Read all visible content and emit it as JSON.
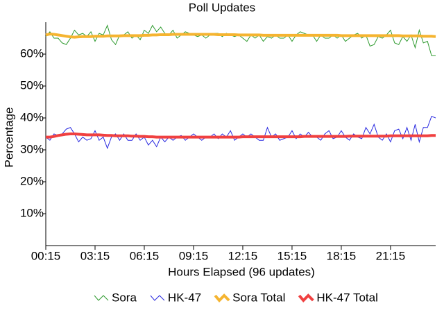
{
  "chart_data": {
    "type": "line",
    "title": "Poll Updates",
    "xlabel": "Hours Elapsed (96 updates)",
    "ylabel": "Percentage",
    "categories": [
      "00:15",
      null,
      null,
      null,
      null,
      null,
      null,
      null,
      null,
      null,
      null,
      null,
      "03:15",
      null,
      null,
      null,
      null,
      null,
      null,
      null,
      null,
      null,
      null,
      null,
      "06:15",
      null,
      null,
      null,
      null,
      null,
      null,
      null,
      null,
      null,
      null,
      null,
      "09:15",
      null,
      null,
      null,
      null,
      null,
      null,
      null,
      null,
      null,
      null,
      null,
      "12:15",
      null,
      null,
      null,
      null,
      null,
      null,
      null,
      null,
      null,
      null,
      null,
      "15:15",
      null,
      null,
      null,
      null,
      null,
      null,
      null,
      null,
      null,
      null,
      null,
      "18:15",
      null,
      null,
      null,
      null,
      null,
      null,
      null,
      null,
      null,
      null,
      null,
      "21:15",
      null,
      null,
      null,
      null,
      null,
      null,
      null,
      null,
      null,
      null,
      null
    ],
    "ylim": [
      0,
      70
    ],
    "yticks": [
      {
        "value": 10,
        "label": "10%"
      },
      {
        "value": 20,
        "label": "20%"
      },
      {
        "value": 30,
        "label": "30%"
      },
      {
        "value": 40,
        "label": "40%"
      },
      {
        "value": 50,
        "label": "50%"
      },
      {
        "value": 60,
        "label": "60%"
      }
    ],
    "legend": "bottom",
    "series": [
      {
        "name": "Sora",
        "color": "#2e9a2e",
        "width": 1,
        "values": [
          65.5,
          67,
          65,
          65,
          63.5,
          63,
          65,
          67.5,
          66,
          66.5,
          65.5,
          67,
          64,
          66.5,
          66,
          69,
          64.5,
          63,
          66,
          66,
          67,
          65,
          66,
          64.5,
          67.5,
          66.5,
          69,
          67,
          68.5,
          66.5,
          66,
          67.5,
          65,
          66,
          67,
          66.5,
          66,
          65.5,
          66,
          65,
          66,
          66.5,
          66.5,
          65.5,
          66.5,
          66,
          65.5,
          66,
          65,
          64,
          66,
          65,
          66,
          64,
          65.5,
          65,
          66,
          65,
          65,
          66,
          64,
          66,
          67,
          66.5,
          66,
          66,
          64,
          66,
          65,
          65,
          66,
          65,
          66,
          64,
          65,
          66,
          66.5,
          65,
          66,
          62.5,
          63,
          65.5,
          65,
          66,
          67.5,
          63.5,
          63,
          65.5,
          64,
          66,
          62,
          67.5,
          63.5,
          64,
          59.5,
          59.5
        ]
      },
      {
        "name": "HK-47",
        "color": "#2a2ae0",
        "width": 1,
        "values": [
          34,
          33,
          35,
          34.5,
          35,
          36.5,
          37,
          35,
          32.5,
          34,
          33,
          33.5,
          36,
          33,
          34,
          30.5,
          34,
          35,
          33,
          35,
          33,
          33,
          35,
          33,
          34,
          31.5,
          33,
          31,
          34,
          32.5,
          34,
          33,
          34,
          34.5,
          33,
          34,
          35,
          34,
          33,
          34,
          34,
          35,
          33.5,
          35,
          34,
          36,
          33,
          34,
          35,
          34,
          35,
          34,
          33,
          33,
          37,
          34,
          35,
          33,
          33.5,
          34,
          36,
          33.5,
          35,
          34,
          35.5,
          34,
          34,
          33,
          35,
          36,
          33.5,
          34,
          36,
          34,
          33,
          35,
          34,
          33.5,
          37,
          35,
          38,
          34,
          33,
          35,
          32.5,
          36,
          36.5,
          33.5,
          37,
          33,
          38,
          32.5,
          37,
          37,
          40.5,
          40
        ]
      },
      {
        "name": "Sora Total",
        "color": "#f5b430",
        "width": 4,
        "values": [
          66,
          66.3,
          66.2,
          66,
          65.8,
          65.6,
          65.4,
          65.3,
          65.4,
          65.5,
          65.5,
          65.5,
          65.6,
          65.6,
          65.6,
          65.7,
          65.7,
          65.7,
          65.7,
          65.8,
          65.8,
          65.8,
          65.8,
          65.8,
          65.9,
          65.9,
          66,
          66,
          66.1,
          66.1,
          66.1,
          66.2,
          66.2,
          66.2,
          66.2,
          66.2,
          66.2,
          66.2,
          66.2,
          66.2,
          66.2,
          66.2,
          66.1,
          66.1,
          66.1,
          66.1,
          66.1,
          66,
          66,
          66,
          66,
          66,
          66,
          65.9,
          65.9,
          65.9,
          65.9,
          65.9,
          65.9,
          65.9,
          65.9,
          65.9,
          65.9,
          65.9,
          65.9,
          65.9,
          65.9,
          65.9,
          65.9,
          65.9,
          65.9,
          65.9,
          65.8,
          65.8,
          65.8,
          65.8,
          65.8,
          65.8,
          65.8,
          65.8,
          65.8,
          65.8,
          65.8,
          65.8,
          65.8,
          65.8,
          65.8,
          65.7,
          65.7,
          65.7,
          65.7,
          65.7,
          65.6,
          65.6,
          65.6,
          65.5
        ]
      },
      {
        "name": "HK-47 Total",
        "color": "#f04040",
        "width": 4,
        "values": [
          34,
          34,
          34.2,
          34.5,
          34.7,
          34.9,
          35,
          35,
          34.9,
          34.8,
          34.7,
          34.7,
          34.7,
          34.7,
          34.6,
          34.5,
          34.5,
          34.4,
          34.4,
          34.4,
          34.4,
          34.3,
          34.3,
          34.2,
          34.2,
          34.1,
          34.1,
          34,
          34,
          34,
          34,
          34,
          34,
          34,
          34,
          34,
          34,
          34,
          34,
          34,
          34,
          34,
          34,
          34,
          34,
          34,
          34,
          34,
          34.1,
          34.1,
          34.1,
          34.1,
          34.1,
          34.1,
          34.1,
          34.1,
          34.1,
          34.1,
          34.1,
          34.1,
          34.1,
          34.1,
          34.1,
          34.2,
          34.2,
          34.2,
          34.2,
          34.2,
          34.2,
          34.2,
          34.2,
          34.2,
          34.2,
          34.2,
          34.3,
          34.3,
          34.3,
          34.3,
          34.3,
          34.3,
          34.3,
          34.3,
          34.3,
          34.3,
          34.4,
          34.4,
          34.4,
          34.4,
          34.4,
          34.4,
          34.4,
          34.4,
          34.4,
          34.4,
          34.5,
          34.5
        ]
      }
    ]
  }
}
